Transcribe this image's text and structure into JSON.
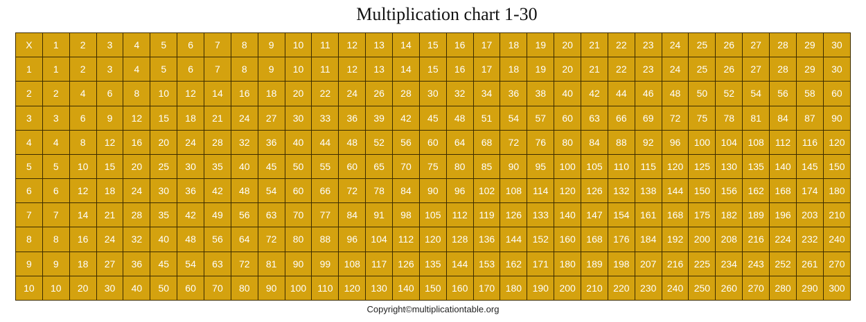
{
  "title": "Multiplication chart 1-30",
  "table": {
    "corner": "X",
    "columns": 30,
    "rows": 10
  },
  "colors": {
    "cell_background": "#d4a20f",
    "cell_text": "#ffffff",
    "border": "#3a2a00"
  },
  "copyright": "Copyright©multiplicationtable.org"
}
